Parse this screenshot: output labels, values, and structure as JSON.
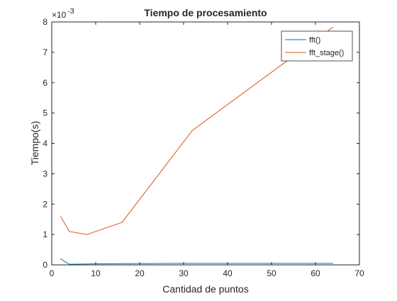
{
  "chart_data": {
    "type": "line",
    "title": "Tiempo de procesamiento",
    "xlabel": "Cantidad de puntos",
    "ylabel": "Tiempo(s)",
    "xlim": [
      0,
      70
    ],
    "ylim": [
      0,
      8
    ],
    "x_ticks": [
      0,
      10,
      20,
      30,
      40,
      50,
      60,
      70
    ],
    "y_ticks": [
      0,
      1,
      2,
      3,
      4,
      5,
      6,
      7,
      8
    ],
    "y_exponent_base": "×10",
    "y_exponent_power": "-3",
    "y_exponent_note": "values shown in units of 1e-3 s",
    "grid": false,
    "legend_position": "top-right",
    "series": [
      {
        "name": "fft()",
        "color": "#0072BD",
        "x": [
          2,
          4,
          8,
          16,
          32,
          64
        ],
        "y": [
          0.2,
          0.02,
          0.03,
          0.04,
          0.05,
          0.05
        ]
      },
      {
        "name": "fft_stage()",
        "color": "#D95319",
        "x": [
          2,
          4,
          8,
          16,
          32,
          64
        ],
        "y": [
          1.6,
          1.1,
          1.0,
          1.4,
          4.43,
          7.83
        ]
      }
    ]
  }
}
